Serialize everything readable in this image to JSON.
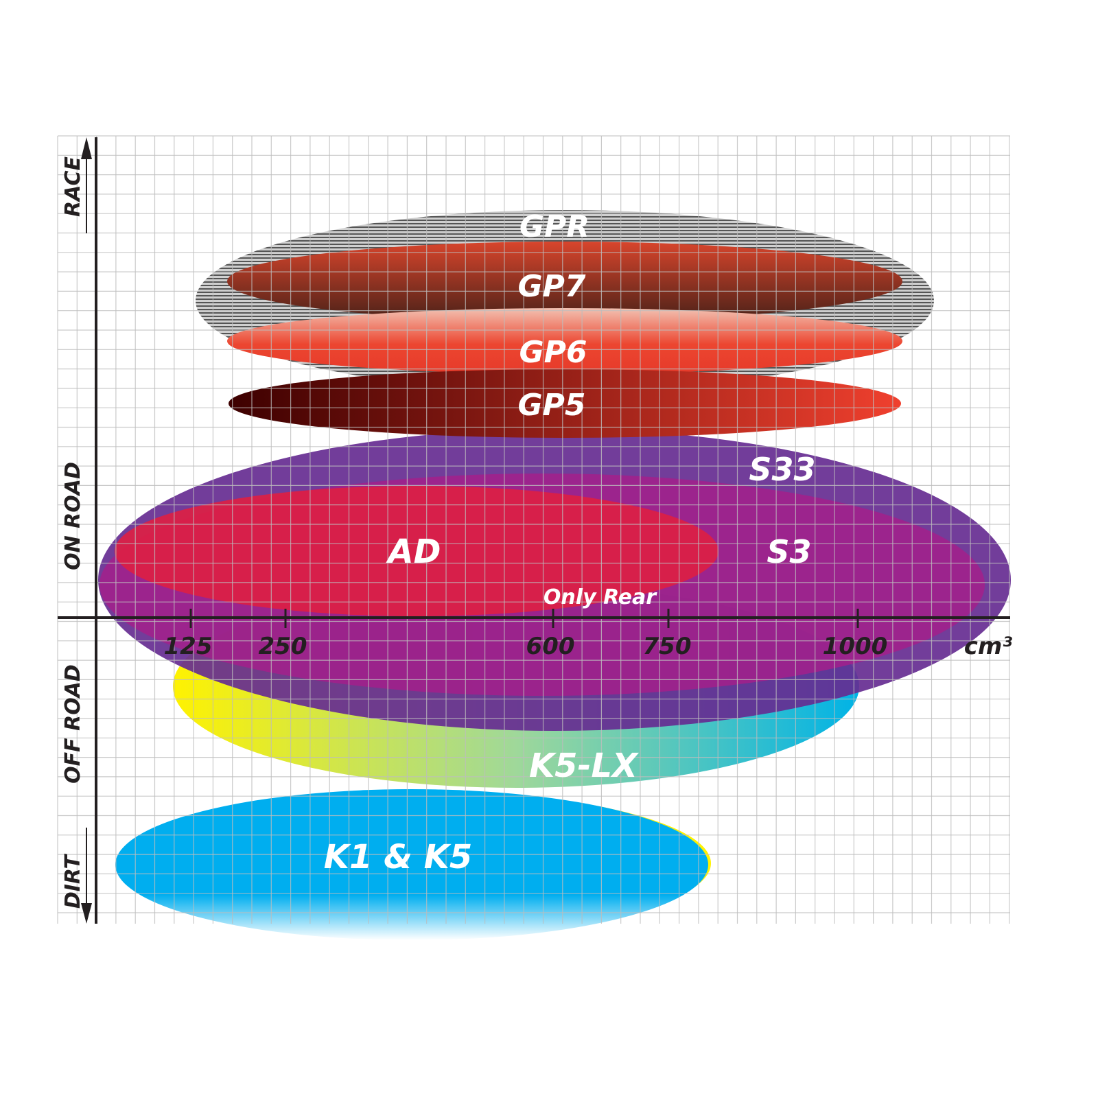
{
  "axes": {
    "y_labels": {
      "top": "RACE",
      "on_road": "ON ROAD",
      "off_road": "OFF ROAD",
      "bottom": "DIRT"
    },
    "x_unit": "cm³",
    "x_ticks": [
      "125",
      "250",
      "600",
      "750",
      "1000"
    ]
  },
  "products": {
    "gpr": "GPR",
    "gp7": "GP7",
    "gp6": "GP6",
    "gp5": "GP5",
    "s33": "S33",
    "s3": "S3",
    "ad": "AD",
    "only_rear": "Only Rear",
    "k5lx": "K5-LX",
    "k1k5": "K1 & K5"
  },
  "colors": {
    "gpr": "#9a9a9a",
    "gp7": "#8a3a2a",
    "gp6": "#e8412f",
    "gp5": "#5a0a08",
    "s33": "#662d91",
    "s3": "#a0208a",
    "ad": "#dc1f44",
    "k5lx_start": "#fff200",
    "k5lx_end": "#00b3e6",
    "k1k5": "#00aeef"
  }
}
